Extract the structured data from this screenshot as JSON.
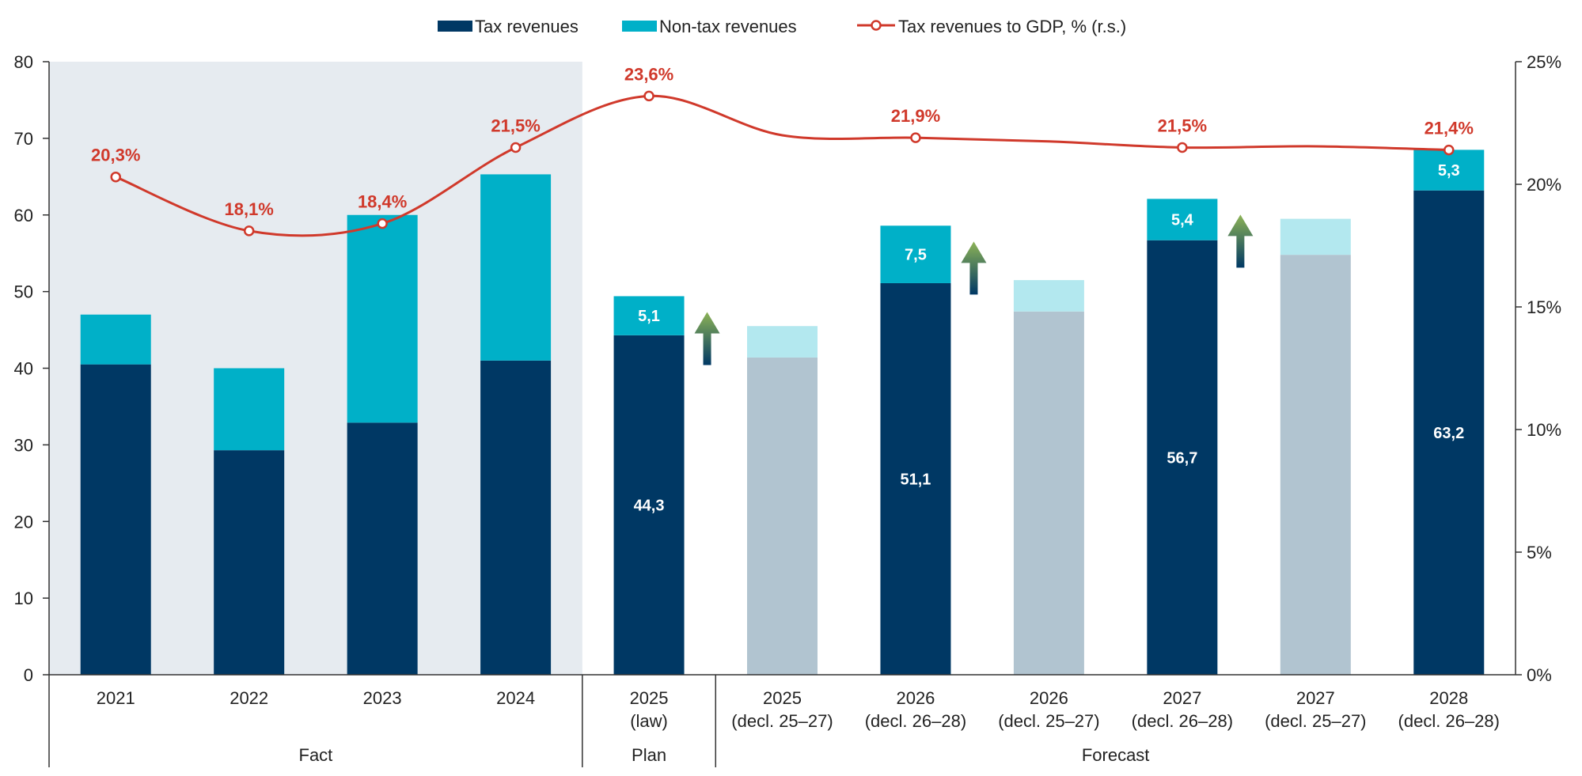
{
  "chart_data": {
    "type": "bar",
    "stacked": true,
    "legend": {
      "position": "top-center",
      "entries": [
        {
          "name": "Tax revenues",
          "color": "#003864",
          "kind": "bar"
        },
        {
          "name": "Non-tax revenues",
          "color": "#00B0C8",
          "kind": "bar"
        },
        {
          "name": "Tax revenues to GDP, % (r.s.)",
          "color": "#D0392B",
          "kind": "line"
        }
      ]
    },
    "categories": [
      {
        "line1": "2021",
        "line2": ""
      },
      {
        "line1": "2022",
        "line2": ""
      },
      {
        "line1": "2023",
        "line2": ""
      },
      {
        "line1": "2024",
        "line2": ""
      },
      {
        "line1": "2025",
        "line2": "(law)"
      },
      {
        "line1": "2025",
        "line2": "(decl. 25–27)"
      },
      {
        "line1": "2026",
        "line2": "(decl. 26–28)"
      },
      {
        "line1": "2026",
        "line2": "(decl. 25–27)"
      },
      {
        "line1": "2027",
        "line2": "(decl. 26–28)"
      },
      {
        "line1": "2027",
        "line2": "(decl. 25–27)"
      },
      {
        "line1": "2028",
        "line2": "(decl. 26–28)"
      }
    ],
    "groups": [
      {
        "label": "Fact",
        "from": 0,
        "to": 3,
        "shaded": true
      },
      {
        "label": "Plan",
        "from": 4,
        "to": 4,
        "shaded": false
      },
      {
        "label": "Forecast",
        "from": 5,
        "to": 10,
        "shaded": false
      }
    ],
    "series": [
      {
        "name": "Tax revenues",
        "axis": "left",
        "values": [
          40.5,
          29.3,
          32.9,
          41.0,
          44.3,
          41.4,
          51.1,
          47.4,
          56.7,
          54.8,
          63.2
        ],
        "value_labels": [
          "",
          "",
          "",
          "",
          "44,3",
          "",
          "51,1",
          "",
          "56,7",
          "",
          "63,2"
        ],
        "faded": [
          false,
          false,
          false,
          false,
          false,
          true,
          false,
          true,
          false,
          true,
          false
        ]
      },
      {
        "name": "Non-tax revenues",
        "axis": "left",
        "values": [
          6.5,
          10.7,
          27.1,
          24.3,
          5.1,
          4.1,
          7.5,
          4.1,
          5.4,
          4.7,
          5.3
        ],
        "value_labels": [
          "",
          "",
          "",
          "",
          "5,1",
          "",
          "7,5",
          "",
          "5,4",
          "",
          "5,3"
        ],
        "faded": [
          false,
          false,
          false,
          false,
          false,
          true,
          false,
          true,
          false,
          true,
          false
        ]
      },
      {
        "name": "Tax revenues to GDP, % (r.s.)",
        "type": "line",
        "axis": "right",
        "smooth": true,
        "values": [
          20.3,
          18.1,
          18.4,
          21.5,
          23.6,
          22.0,
          21.9,
          21.75,
          21.5,
          21.55,
          21.4
        ],
        "value_labels": [
          "20,3%",
          "18,1%",
          "18,4%",
          "21,5%",
          "23,6%",
          "",
          "21,9%",
          "",
          "21,5%",
          "",
          "21,4%"
        ],
        "markers": [
          true,
          true,
          true,
          true,
          true,
          false,
          true,
          false,
          true,
          false,
          true
        ]
      }
    ],
    "arrows_after_category": [
      4,
      6,
      8
    ],
    "y_left": {
      "min": 0,
      "max": 80,
      "step": 10,
      "ticks": [
        "0",
        "10",
        "20",
        "30",
        "40",
        "50",
        "60",
        "70",
        "80"
      ]
    },
    "y_right": {
      "min": 0,
      "max": 25,
      "step": 5,
      "ticks": [
        "0%",
        "5%",
        "10%",
        "15%",
        "20%",
        "25%"
      ]
    },
    "grid": false,
    "colors": {
      "tax": "#003864",
      "nontax": "#00B0C8",
      "tax_faded": "#B1C4D0",
      "nontax_faded": "#B3E8EF",
      "line": "#D0392B",
      "shade": "#E6EBF0",
      "axis": "#333333",
      "arrow_top": "#8DB356",
      "arrow_bottom": "#003864"
    }
  }
}
